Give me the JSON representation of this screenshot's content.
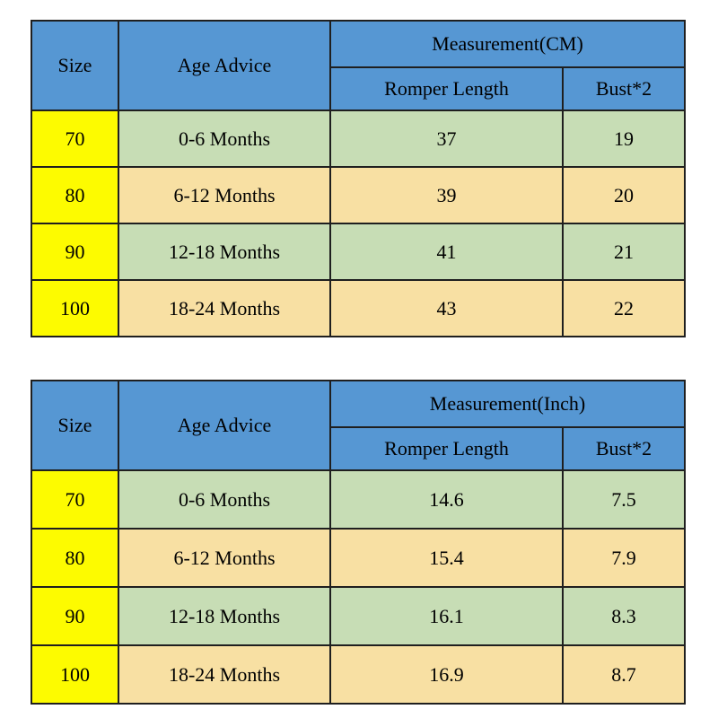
{
  "colors": {
    "header_blue": "#5697d3",
    "size_column_yellow": "#fdfb00",
    "row_green": "#c7ddb5",
    "row_tan": "#f8e0a3",
    "border": "#1f1f1f",
    "background": "#ffffff",
    "text": "#000000"
  },
  "chart_data": [
    {
      "type": "table",
      "measurement_header": "Measurement(CM)",
      "columns": [
        "Size",
        "Age Advice",
        "Romper Length",
        "Bust*2"
      ],
      "rows": [
        [
          "70",
          "0-6 Months",
          "37",
          "19"
        ],
        [
          "80",
          "6-12 Months",
          "39",
          "20"
        ],
        [
          "90",
          "12-18 Months",
          "41",
          "21"
        ],
        [
          "100",
          "18-24 Months",
          "43",
          "22"
        ]
      ]
    },
    {
      "type": "table",
      "measurement_header": "Measurement(Inch)",
      "columns": [
        "Size",
        "Age Advice",
        "Romper Length",
        "Bust*2"
      ],
      "rows": [
        [
          "70",
          "0-6 Months",
          "14.6",
          "7.5"
        ],
        [
          "80",
          "6-12 Months",
          "15.4",
          "7.9"
        ],
        [
          "90",
          "12-18 Months",
          "16.1",
          "8.3"
        ],
        [
          "100",
          "18-24 Months",
          "16.9",
          "8.7"
        ]
      ]
    }
  ]
}
